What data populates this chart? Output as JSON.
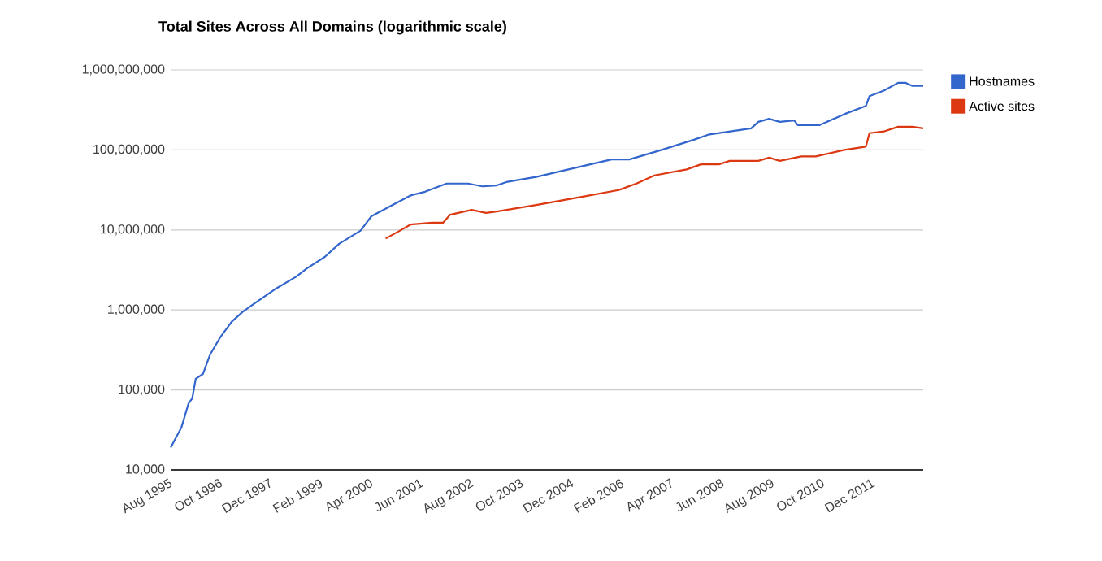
{
  "chart_data": {
    "type": "line",
    "title": "Total Sites Across All Domains (logarithmic scale)",
    "log": true,
    "grid": "y",
    "legend": "right",
    "marker": "none",
    "line_style": "solid",
    "xlim": [
      "1995-08",
      "2013-02"
    ],
    "xticks": [
      {
        "value": "1995-08",
        "label": "Aug 1995"
      },
      {
        "value": "1996-10",
        "label": "Oct 1996"
      },
      {
        "value": "1997-12",
        "label": "Dec 1997"
      },
      {
        "value": "1999-02",
        "label": "Feb 1999"
      },
      {
        "value": "2000-04",
        "label": "Apr 2000"
      },
      {
        "value": "2001-06",
        "label": "Jun 2001"
      },
      {
        "value": "2002-08",
        "label": "Aug 2002"
      },
      {
        "value": "2003-10",
        "label": "Oct 2003"
      },
      {
        "value": "2004-12",
        "label": "Dec 2004"
      },
      {
        "value": "2006-02",
        "label": "Feb 2006"
      },
      {
        "value": "2007-04",
        "label": "Apr 2007"
      },
      {
        "value": "2008-06",
        "label": "Jun 2008"
      },
      {
        "value": "2009-08",
        "label": "Aug 2009"
      },
      {
        "value": "2010-10",
        "label": "Oct 2010"
      },
      {
        "value": "2011-12",
        "label": "Dec 2011"
      }
    ],
    "ylim": [
      10000,
      1000000000
    ],
    "yticks": [
      {
        "value": 10000,
        "label": "10,000"
      },
      {
        "value": 100000,
        "label": "100,000"
      },
      {
        "value": 1000000,
        "label": "1,000,000"
      },
      {
        "value": 10000000,
        "label": "10,000,000"
      },
      {
        "value": 100000000,
        "label": "100,000,000"
      },
      {
        "value": 1000000000,
        "label": "1,000,000,000"
      }
    ],
    "series": [
      {
        "name": "Hostnames",
        "color": "#3366cc",
        "x": [
          "1995-08",
          "1995-11",
          "1996-01",
          "1996-02",
          "1996-03",
          "1996-05",
          "1996-07",
          "1996-10",
          "1997-01",
          "1997-04",
          "1997-07",
          "1998-01",
          "1998-07",
          "1998-10",
          "1999-03",
          "1999-07",
          "2000-01",
          "2000-04",
          "2000-09",
          "2001-03",
          "2001-07",
          "2002-01",
          "2002-07",
          "2002-11",
          "2003-03",
          "2003-06",
          "2004-02",
          "2004-11",
          "2005-11",
          "2006-04",
          "2007-01",
          "2007-10",
          "2008-02",
          "2009-02",
          "2009-04",
          "2009-07",
          "2009-10",
          "2010-02",
          "2010-03",
          "2010-09",
          "2011-04",
          "2011-10",
          "2011-11",
          "2012-03",
          "2012-07",
          "2012-09",
          "2012-11",
          "2013-02"
        ],
        "values": [
          19000,
          34000,
          68000,
          78000,
          138000,
          158000,
          277000,
          466000,
          710000,
          940000,
          1170000,
          1800000,
          2600000,
          3300000,
          4600000,
          6700000,
          9800000,
          14800000,
          19500000,
          27000000,
          30000000,
          38000000,
          38000000,
          35000000,
          36000000,
          40000000,
          46000000,
          57000000,
          76000000,
          76000000,
          100000000,
          134000000,
          155000000,
          186000000,
          224000000,
          245000000,
          224000000,
          234000000,
          204000000,
          204000000,
          280000000,
          355000000,
          470000000,
          550000000,
          690000000,
          690000000,
          630000000,
          630000000
        ]
      },
      {
        "name": "Active sites",
        "color": "#dc3912",
        "x": [
          "2000-08",
          "2000-12",
          "2001-03",
          "2001-09",
          "2001-12",
          "2002-02",
          "2002-08",
          "2002-12",
          "2003-03",
          "2004-02",
          "2005-03",
          "2006-01",
          "2006-06",
          "2006-11",
          "2007-08",
          "2007-12",
          "2008-05",
          "2008-08",
          "2009-04",
          "2009-07",
          "2009-10",
          "2010-04",
          "2010-08",
          "2011-04",
          "2011-10",
          "2011-11",
          "2012-03",
          "2012-07",
          "2012-11",
          "2013-02"
        ],
        "values": [
          7800000,
          9800000,
          11700000,
          12300000,
          12300000,
          15500000,
          17800000,
          16300000,
          17000000,
          20500000,
          26000000,
          31500000,
          38000000,
          48000000,
          57000000,
          66000000,
          66000000,
          73000000,
          73000000,
          80000000,
          73000000,
          83000000,
          83000000,
          100000000,
          110000000,
          162000000,
          170000000,
          195000000,
          195000000,
          186000000
        ]
      }
    ]
  }
}
